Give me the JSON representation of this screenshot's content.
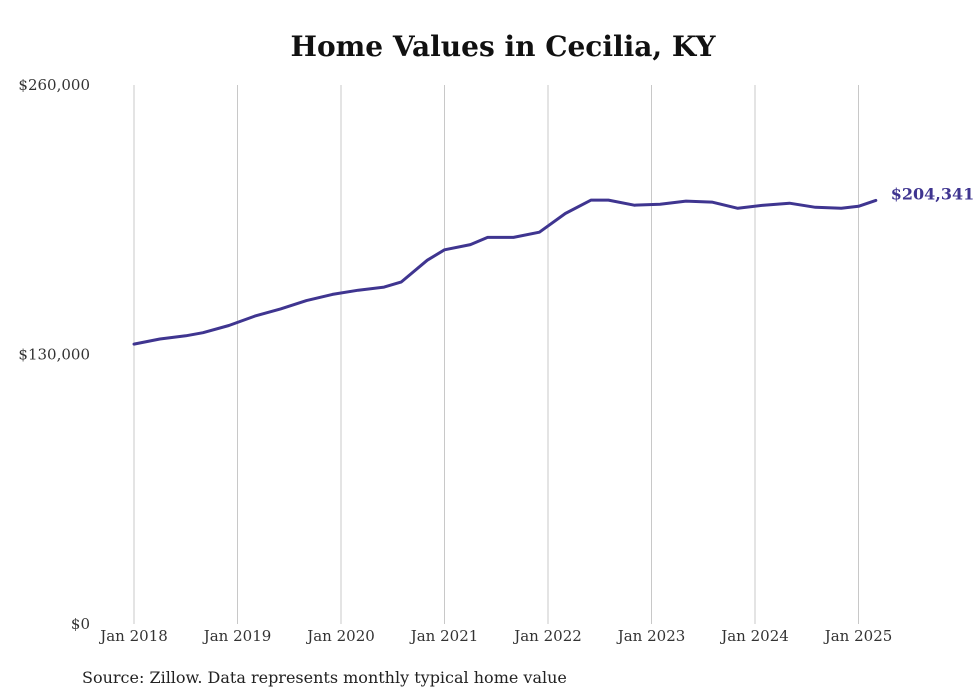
{
  "chart_data": {
    "type": "line",
    "title": "Home Values in Cecilia, KY",
    "xlabel": "",
    "ylabel": "",
    "x_tick_labels": [
      "Jan 2018",
      "Jan 2019",
      "Jan 2020",
      "Jan 2021",
      "Jan 2022",
      "Jan 2023",
      "Jan 2024",
      "Jan 2025"
    ],
    "y_tick_labels": [
      "$260,000",
      "$130,000",
      "$0"
    ],
    "ylim": [
      0,
      260000
    ],
    "xlim": [
      "2018-01",
      "2025-03"
    ],
    "grid": "vertical",
    "line_color": "#3f3590",
    "end_label": "$204,341",
    "series": [
      {
        "x": [
          "2018-01",
          "2018-04",
          "2018-07",
          "2018-09",
          "2018-12",
          "2019-03",
          "2019-06",
          "2019-09",
          "2019-12",
          "2020-03",
          "2020-06",
          "2020-08",
          "2020-11",
          "2021-01",
          "2021-04",
          "2021-06",
          "2021-09",
          "2021-12",
          "2022-03",
          "2022-06",
          "2022-08",
          "2022-11",
          "2023-02",
          "2023-05",
          "2023-08",
          "2023-11",
          "2024-02",
          "2024-05",
          "2024-08",
          "2024-11",
          "2025-01",
          "2025-03"
        ],
        "values": [
          135000,
          137500,
          139000,
          140500,
          144000,
          148500,
          152000,
          156000,
          159000,
          161000,
          162500,
          165000,
          175500,
          180500,
          183000,
          186500,
          186500,
          189000,
          198000,
          204500,
          204500,
          202000,
          202500,
          204000,
          203500,
          200500,
          202000,
          203000,
          201000,
          200500,
          201500,
          204341
        ]
      }
    ]
  },
  "source": "Source: Zillow. Data represents monthly typical home value"
}
